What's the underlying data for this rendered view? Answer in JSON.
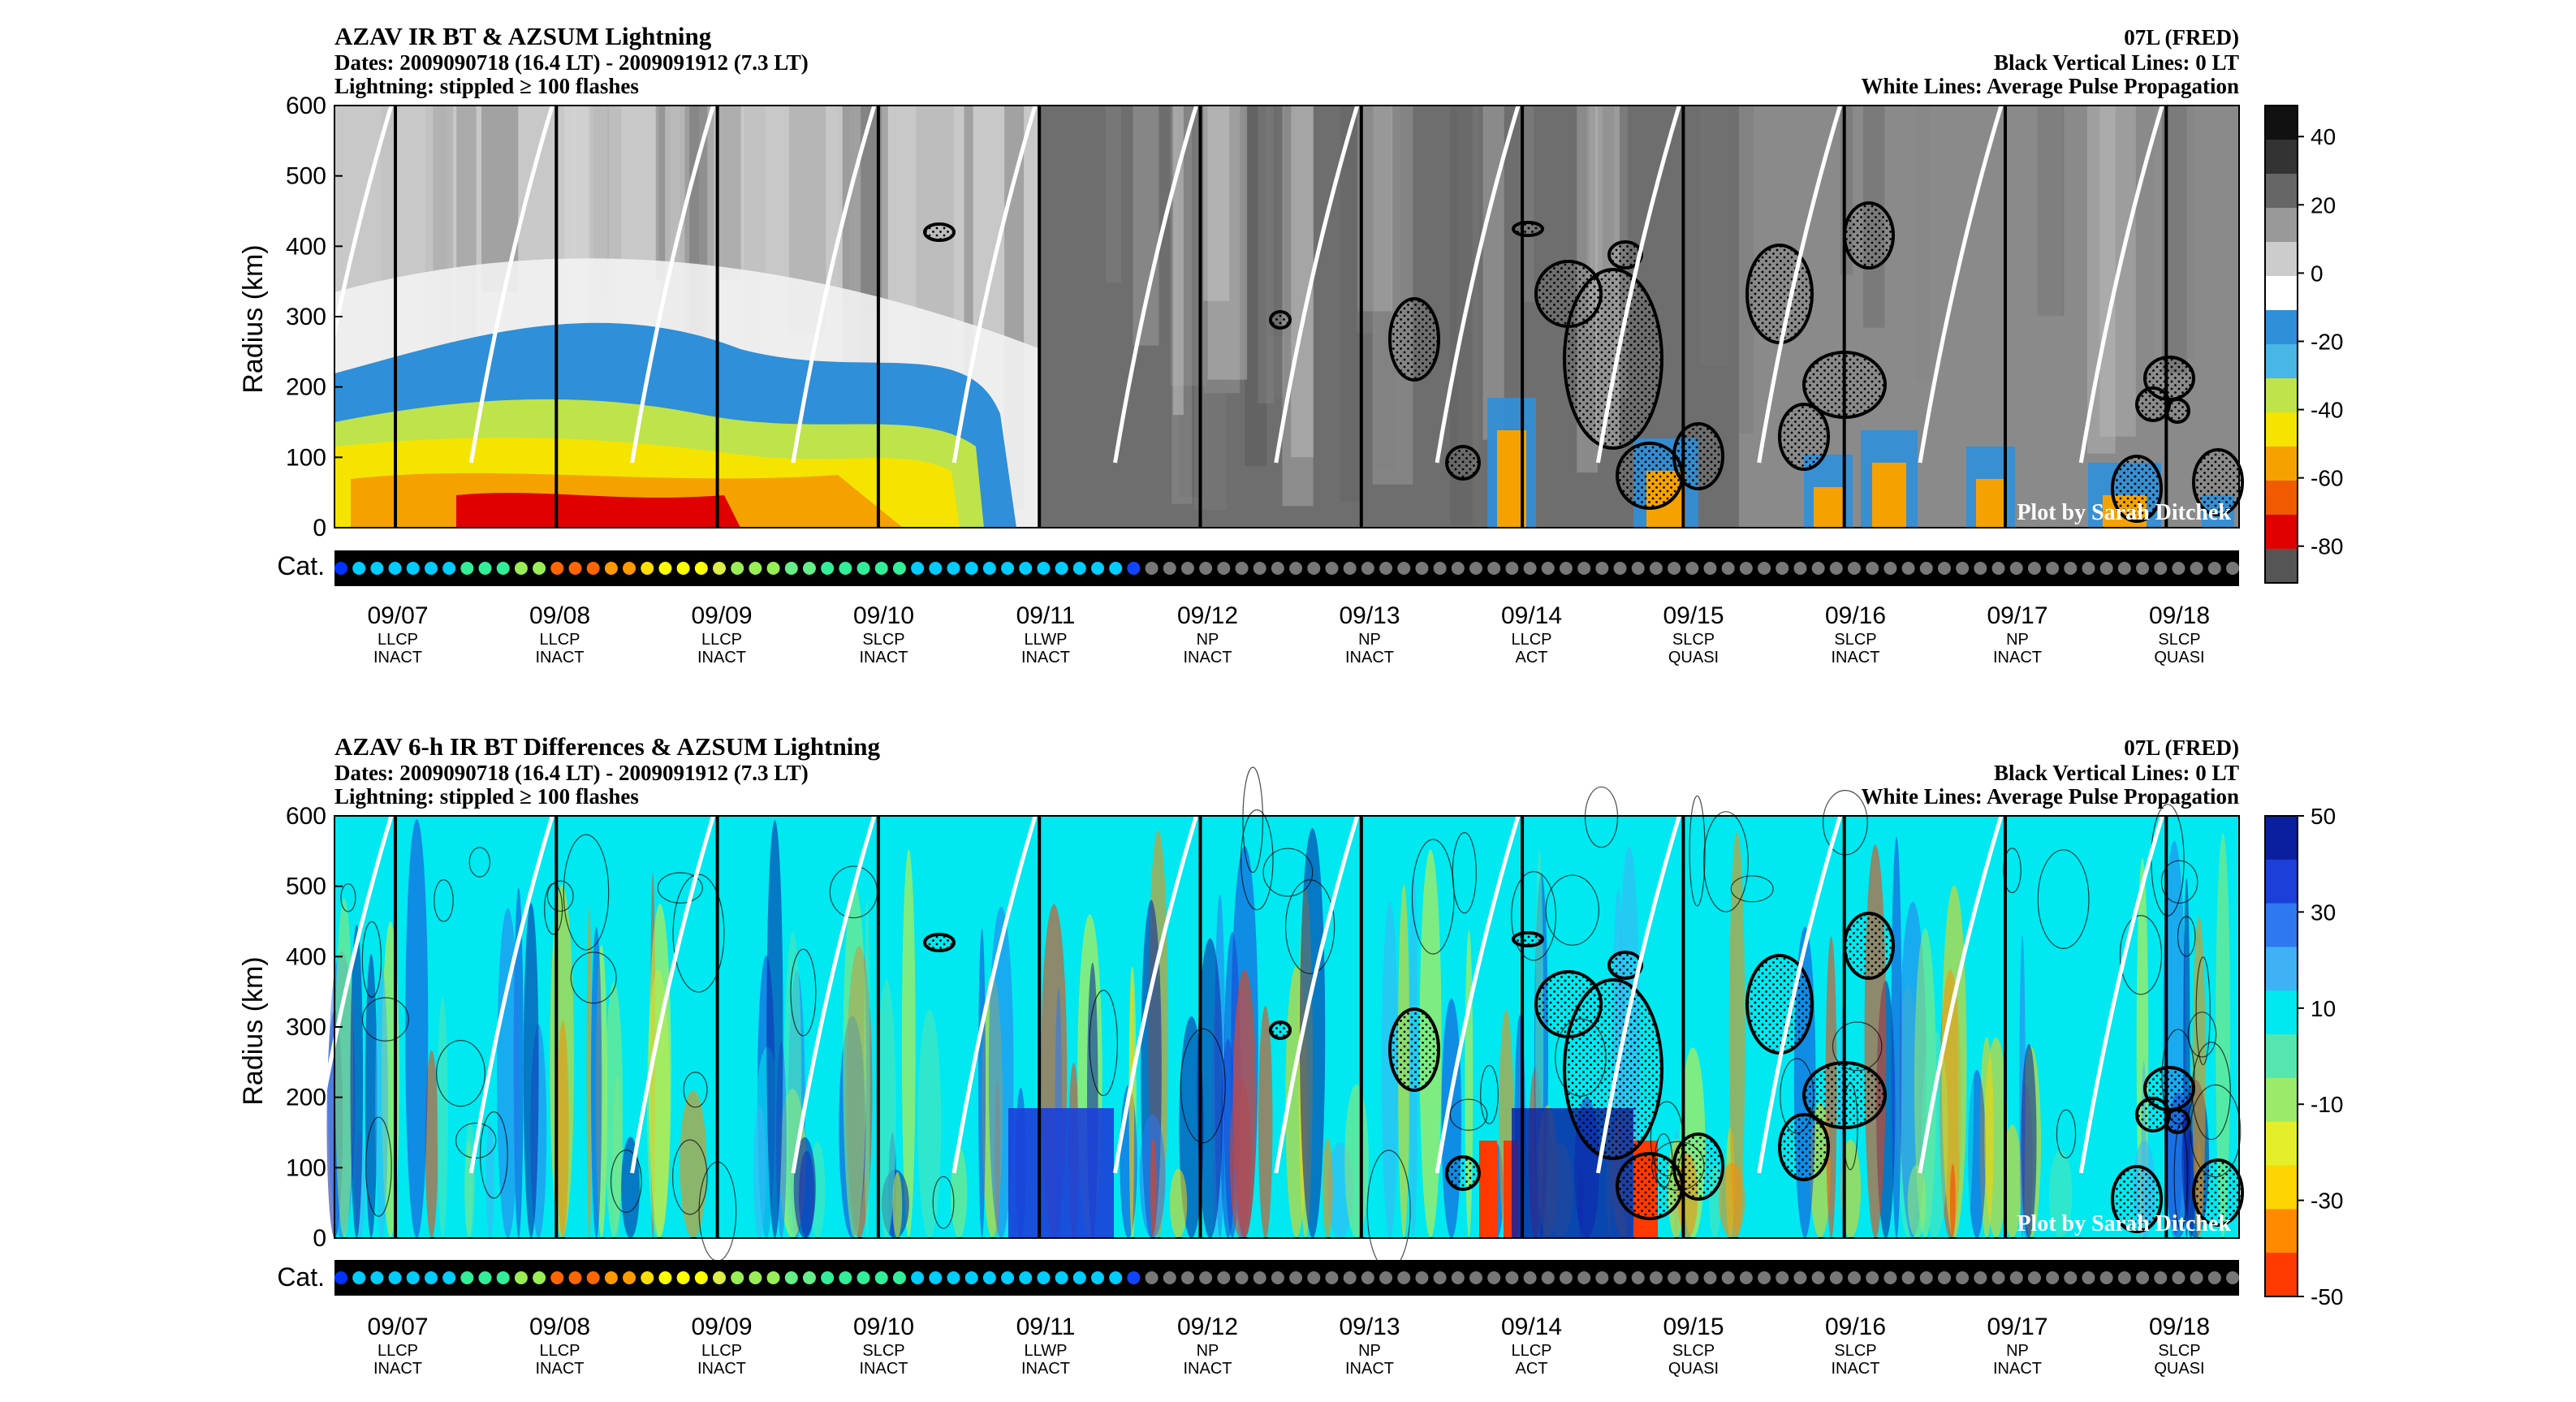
{
  "panels": [
    {
      "title": "AZAV IR BT & AZSUM Lightning",
      "dates": "Dates: 2009090718 (16.4 LT) - 2009091912 (7.3 LT)",
      "lightning": "Lightning: stippled ≥ 100 flashes",
      "storm": "07L (FRED)",
      "black_lines": "Black Vertical Lines: 0 LT",
      "white_lines": "White Lines: Average Pulse Propagation",
      "watermark": "Plot by Sarah Ditchek",
      "ylabel": "Radius (km)",
      "cat_label": "Cat.",
      "colorbar_ticks": [
        "40",
        "20",
        "0",
        "-20",
        "-40",
        "-60",
        "-80"
      ],
      "style": "gray"
    },
    {
      "title": "AZAV 6-h IR BT Differences & AZSUM Lightning",
      "dates": "Dates: 2009090718 (16.4 LT) - 2009091912 (7.3 LT)",
      "lightning": "Lightning: stippled ≥ 100 flashes",
      "storm": "07L (FRED)",
      "black_lines": "Black Vertical Lines: 0 LT",
      "white_lines": "White Lines: Average Pulse Propagation",
      "watermark": "Plot by Sarah Ditchek",
      "ylabel": "Radius (km)",
      "cat_label": "Cat.",
      "colorbar_ticks": [
        "50",
        "30",
        "10",
        "-10",
        "-30",
        "-50"
      ],
      "style": "jet"
    }
  ],
  "chart_data": {
    "type": "heatmap",
    "y_ticks": [
      "0",
      "100",
      "200",
      "300",
      "400",
      "500",
      "600"
    ],
    "ylim": [
      0,
      600
    ],
    "x_ticks": [
      {
        "date": "09/07",
        "type": "LLCP",
        "state": "INACT"
      },
      {
        "date": "09/08",
        "type": "LLCP",
        "state": "INACT"
      },
      {
        "date": "09/09",
        "type": "LLCP",
        "state": "INACT"
      },
      {
        "date": "09/10",
        "type": "SLCP",
        "state": "INACT"
      },
      {
        "date": "09/11",
        "type": "LLWP",
        "state": "INACT"
      },
      {
        "date": "09/12",
        "type": "NP",
        "state": "INACT"
      },
      {
        "date": "09/13",
        "type": "NP",
        "state": "INACT"
      },
      {
        "date": "09/14",
        "type": "LLCP",
        "state": "ACT"
      },
      {
        "date": "09/15",
        "type": "SLCP",
        "state": "QUASI"
      },
      {
        "date": "09/16",
        "type": "SLCP",
        "state": "INACT"
      },
      {
        "date": "09/17",
        "type": "NP",
        "state": "INACT"
      },
      {
        "date": "09/18",
        "type": "SLCP",
        "state": "QUASI"
      }
    ],
    "category_dots": [
      "#0033ff",
      "#00ccff",
      "#00ccff",
      "#00ccff",
      "#00ccff",
      "#00ccff",
      "#00ccff",
      "#33ee99",
      "#33ee99",
      "#33ee99",
      "#99ee55",
      "#99ee55",
      "#ff6600",
      "#ff6600",
      "#ff6600",
      "#ff9900",
      "#ff9900",
      "#ffdd00",
      "#ffff00",
      "#ffff00",
      "#ffff00",
      "#ddee44",
      "#99ee55",
      "#99ee55",
      "#99ee55",
      "#66ee88",
      "#66ee88",
      "#33ee99",
      "#33ee99",
      "#33ee99",
      "#33ee99",
      "#33ee99",
      "#00ccff",
      "#00ccff",
      "#00ccff",
      "#00ccff",
      "#00ccff",
      "#00ccff",
      "#00ccff",
      "#00ccff",
      "#00ccff",
      "#00ccff",
      "#00ccff",
      "#00ccff",
      "#1144ff",
      "#777777",
      "#777777",
      "#777777",
      "#777777",
      "#777777",
      "#777777",
      "#777777",
      "#777777",
      "#777777",
      "#777777",
      "#777777",
      "#777777",
      "#777777",
      "#777777",
      "#777777",
      "#777777",
      "#777777",
      "#777777",
      "#777777",
      "#777777",
      "#777777",
      "#777777",
      "#777777",
      "#777777",
      "#777777",
      "#777777",
      "#777777",
      "#777777",
      "#777777",
      "#777777",
      "#777777",
      "#777777",
      "#777777",
      "#777777",
      "#777777",
      "#777777",
      "#777777",
      "#777777",
      "#777777",
      "#777777",
      "#777777",
      "#777777",
      "#777777",
      "#777777",
      "#777777",
      "#777777",
      "#777777",
      "#777777",
      "#777777",
      "#777777",
      "#777777",
      "#777777",
      "#777777",
      "#777777",
      "#777777",
      "#777777",
      "#777777",
      "#777777",
      "#777777",
      "#777777",
      "#777777"
    ],
    "colors": {
      "gray_scale": [
        "#ffffff",
        "#d8d8d8",
        "#9a9a9a",
        "#555555"
      ],
      "cold_scale": [
        "#2f8fd8",
        "#49b7e6",
        "#bfe34a",
        "#f5e400",
        "#f5a200",
        "#f05a00",
        "#e00000"
      ],
      "jet_scale": [
        "#0a1ea0",
        "#1b3fd8",
        "#2e78f0",
        "#3fb2f5",
        "#00e8f0",
        "#55e6b0",
        "#9bea6a",
        "#e4ee2a",
        "#ffd400",
        "#ff8a00",
        "#ff3a00"
      ],
      "cat_bar": "#000000",
      "lightning_contour": "#000000",
      "propagation_line": "#ffffff"
    }
  }
}
